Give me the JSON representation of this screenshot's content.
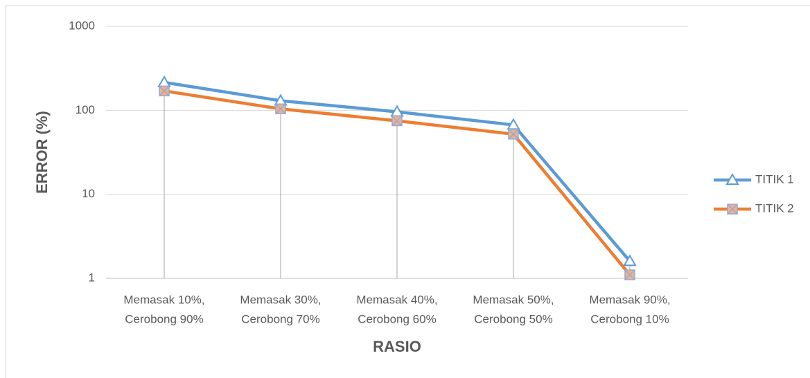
{
  "chart_data": {
    "type": "line",
    "x_label": "RASIO",
    "y_label": "ERROR (%)",
    "categories": [
      [
        "Memasak 10%,",
        "Cerobong 90%"
      ],
      [
        "Memasak 30%,",
        "Cerobong 70%"
      ],
      [
        "Memasak 40%,",
        "Cerobong 60%"
      ],
      [
        "Memasak 50%,",
        "Cerobong 50%"
      ],
      [
        "Memasak 90%,",
        "Cerobong 10%"
      ]
    ],
    "series": [
      {
        "name": "TITIK 1",
        "color": "#5b9bd5",
        "marker": "triangle",
        "values": [
          215,
          130,
          96,
          67,
          1.6
        ]
      },
      {
        "name": "TITIK 2",
        "color": "#ed7d31",
        "marker": "square",
        "values": [
          170,
          104,
          75,
          52,
          1.1
        ]
      }
    ],
    "ylim": [
      1,
      1000
    ],
    "yticks": [
      1,
      10,
      100,
      1000
    ],
    "log_y": true,
    "grid": true,
    "drop_lines": true,
    "legend": "right"
  }
}
